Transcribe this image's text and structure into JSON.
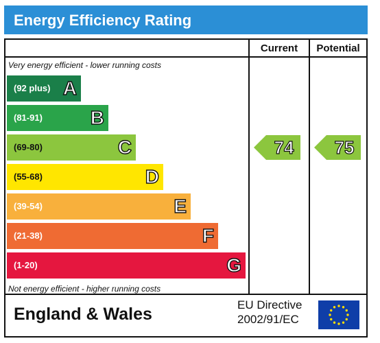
{
  "chart_data": {
    "type": "bar",
    "title": "Energy Efficiency Rating",
    "columns": [
      "Current",
      "Potential"
    ],
    "top_note": "Very energy efficient - lower running costs",
    "bottom_note": "Not energy efficient - higher running costs",
    "bands": [
      {
        "letter": "A",
        "range": "(92 plus)",
        "color": "#1a7f49",
        "min": 92,
        "max": 100
      },
      {
        "letter": "B",
        "range": "(81-91)",
        "color": "#2aa44a",
        "min": 81,
        "max": 91
      },
      {
        "letter": "C",
        "range": "(69-80)",
        "color": "#8cc63e",
        "min": 69,
        "max": 80
      },
      {
        "letter": "D",
        "range": "(55-68)",
        "color": "#ffe600",
        "min": 55,
        "max": 68
      },
      {
        "letter": "E",
        "range": "(39-54)",
        "color": "#f8b03c",
        "min": 39,
        "max": 54
      },
      {
        "letter": "F",
        "range": "(21-38)",
        "color": "#ef6b33",
        "min": 21,
        "max": 38
      },
      {
        "letter": "G",
        "range": "(1-20)",
        "color": "#e5173f",
        "min": 1,
        "max": 20
      }
    ],
    "current": {
      "value": 74,
      "label": "74",
      "band": "C",
      "color": "#8cc63e"
    },
    "potential": {
      "value": 75,
      "label": "75",
      "band": "C",
      "color": "#8cc63e"
    }
  },
  "footer": {
    "region": "England & Wales",
    "directive_line1": "EU Directive",
    "directive_line2": "2002/91/EC",
    "flag_icon": "eu-flag-icon"
  },
  "colors": {
    "title_bar": "#2b8fd6",
    "flag_blue": "#0f3ea8",
    "flag_stars": "#ffdd00"
  }
}
